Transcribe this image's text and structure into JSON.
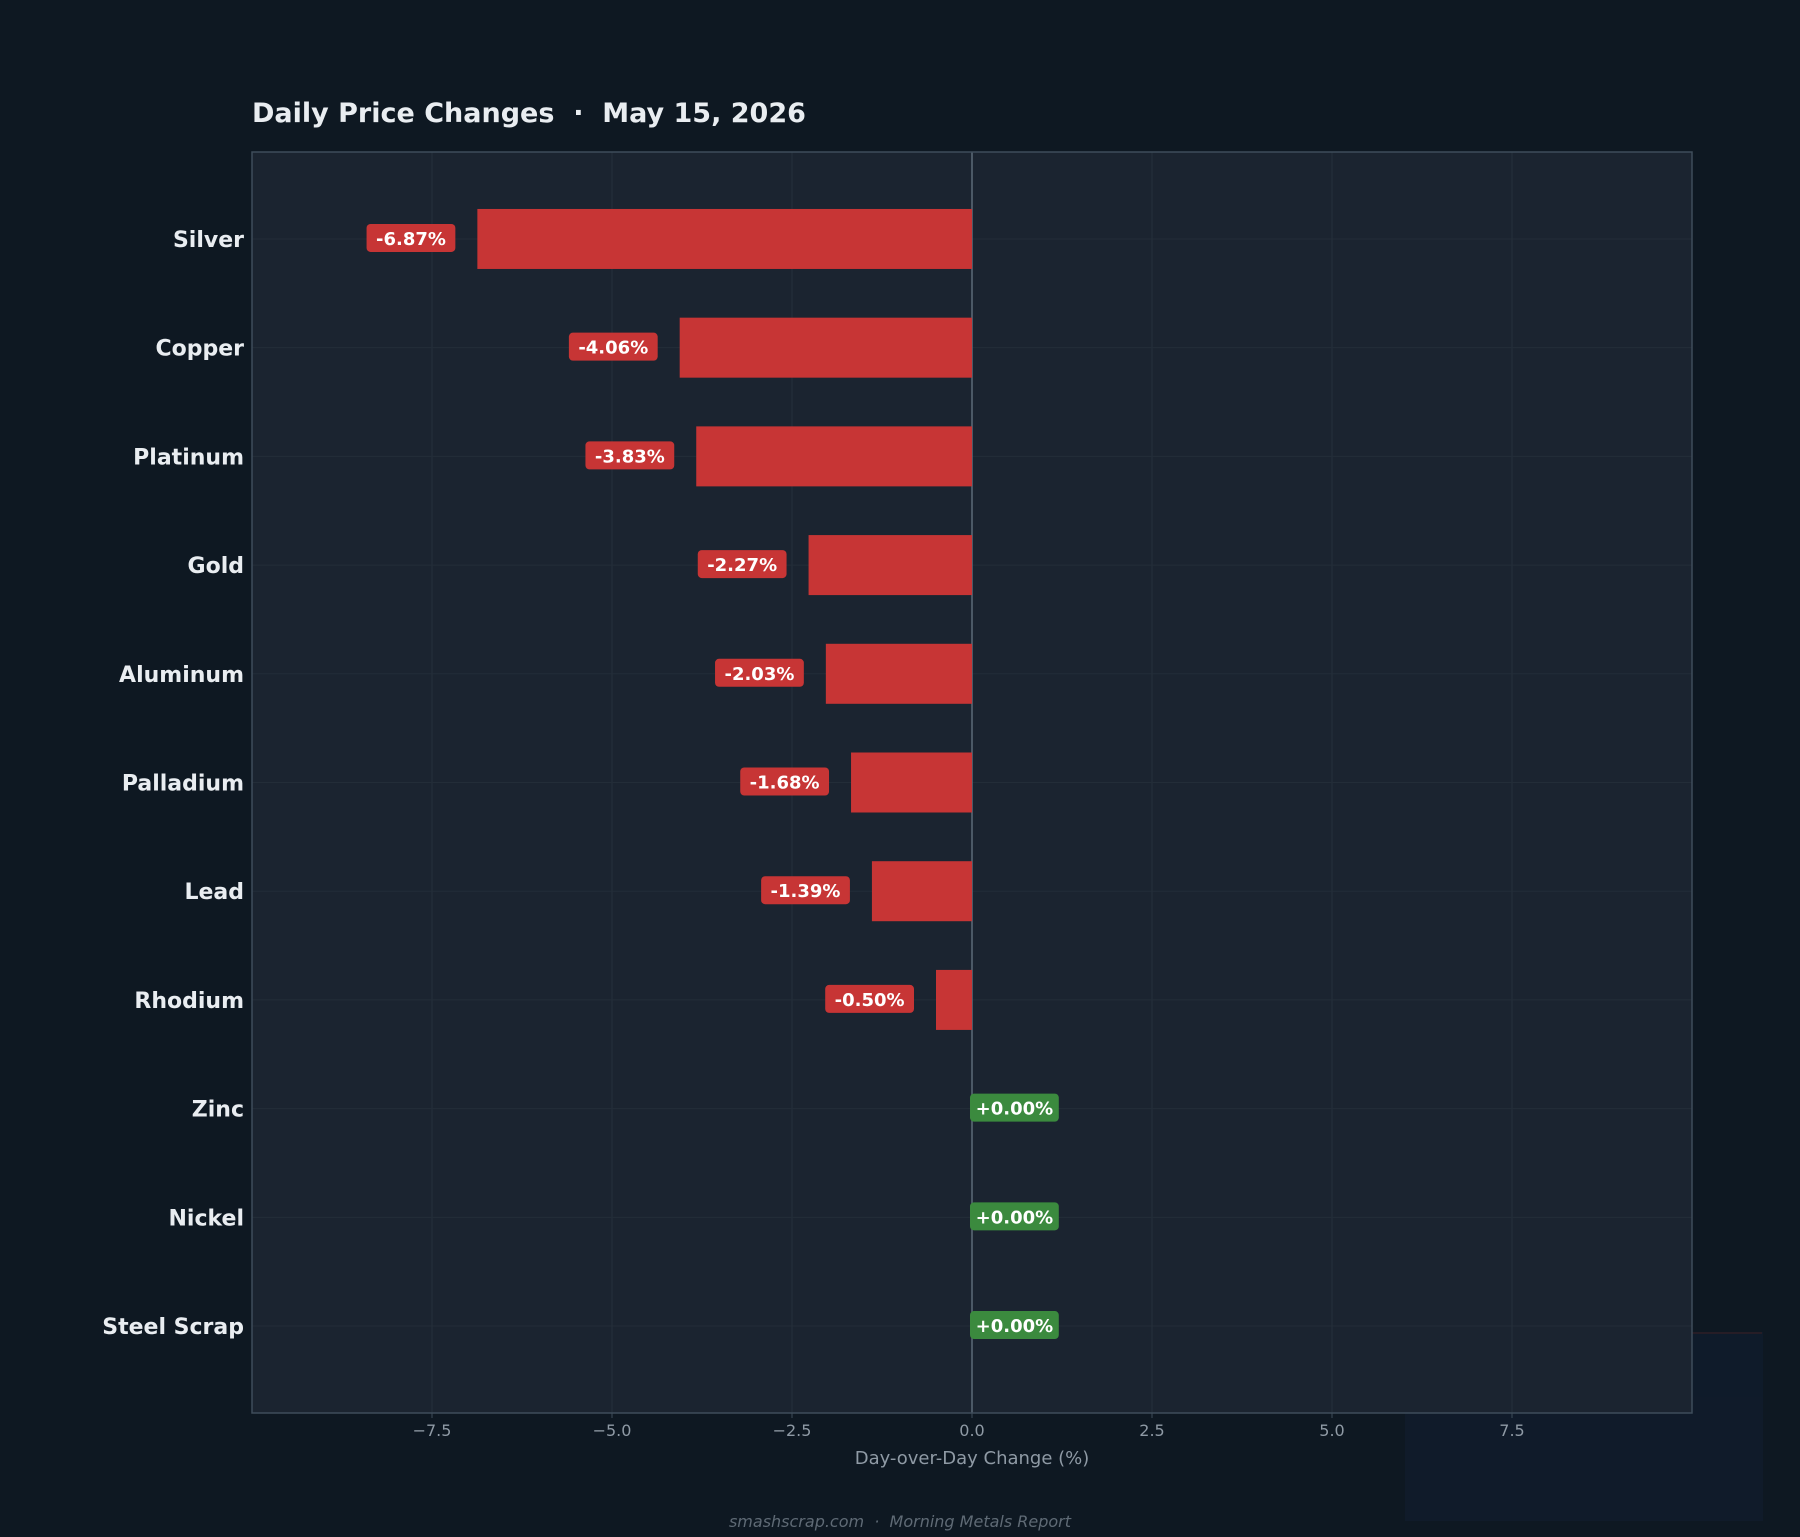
{
  "chart_data": {
    "type": "bar",
    "orientation": "horizontal",
    "title": "Daily Price Changes  ·  May 15, 2026",
    "xlabel": "Day-over-Day Change (%)",
    "ylabel": "",
    "xlim": [
      -10,
      10
    ],
    "xticks": [
      -7.5,
      -5.0,
      -2.5,
      0.0,
      2.5,
      5.0,
      7.5
    ],
    "xtick_labels": [
      "−7.5",
      "−5.0",
      "−2.5",
      "0.0",
      "2.5",
      "5.0",
      "7.5"
    ],
    "grid": true,
    "categories": [
      "Silver",
      "Copper",
      "Platinum",
      "Gold",
      "Aluminum",
      "Palladium",
      "Lead",
      "Rhodium",
      "Zinc",
      "Nickel",
      "Steel Scrap"
    ],
    "values": [
      -6.87,
      -4.06,
      -3.83,
      -2.27,
      -2.03,
      -1.68,
      -1.39,
      -0.5,
      0.0,
      0.0,
      0.0
    ],
    "data_labels": [
      "-6.87%",
      "-4.06%",
      "-3.83%",
      "-2.27%",
      "-2.03%",
      "-1.68%",
      "-1.39%",
      "-0.50%",
      "+0.00%",
      "+0.00%",
      "+0.00%"
    ],
    "colors": {
      "negative": "#c73535",
      "positive": "#3b8a3e"
    }
  },
  "footer": "smashscrap.com  ·  Morning Metals Report",
  "theme": {
    "background": "#0e1822",
    "plot_background": "#1b2430",
    "frame": "#3e4c5a",
    "zero_line": "#5d6b78",
    "text": "#e9edf1",
    "muted_text": "#8f9aa5",
    "footer_text": "#5f6a75"
  }
}
